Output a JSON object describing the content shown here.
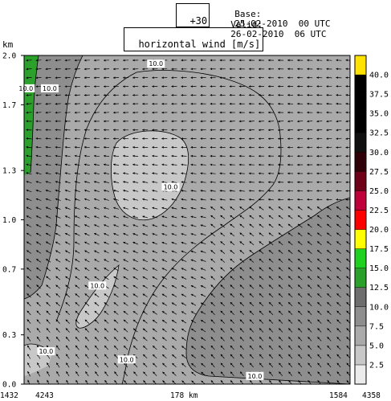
{
  "header": {
    "forecast_step": "+30",
    "base_label": "Base:",
    "base_value": "25-02-2010  00 UTC",
    "valid_label": "Valid:",
    "valid_value": "26-02-2010  06 UTC",
    "field_title": "horizontal wind [m/s]"
  },
  "chart_data": {
    "type": "heatmap",
    "title": "horizontal wind [m/s]",
    "ylabel": "km",
    "xlabel": "",
    "ylim": [
      0.0,
      2.0
    ],
    "y_ticks": [
      "0.0",
      "0.3",
      "0.7",
      "1.0",
      "1.3",
      "1.7",
      "2.0"
    ],
    "x_axis": {
      "left_point_label": "1432",
      "left_height": "4243",
      "center_label": "178 km",
      "right_point_label": "1584",
      "right_height": "4358"
    },
    "colorbar": {
      "levels": [
        "2.5",
        "5.0",
        "7.5",
        "10.0",
        "12.5",
        "15.0",
        "17.5",
        "20.0",
        "22.5",
        "25.0",
        "27.5",
        "30.0",
        "32.5",
        "35.0",
        "37.5",
        "40.0"
      ],
      "colors": [
        "#ebebeb",
        "#c8c8c8",
        "#aaaaaa",
        "#8e8e8e",
        "#6e6e6e",
        "#2ba02b",
        "#1fd21f",
        "#ffff00",
        "#ff0000",
        "#c0003a",
        "#6e0018",
        "#300008",
        "#101010",
        "#000000",
        "#000000",
        "#000000",
        "#ffe200"
      ]
    },
    "contour_labels": [
      {
        "text": "10.0",
        "x_km": 1,
        "y_km": 1.8
      },
      {
        "text": "10.0",
        "x_km": 14,
        "y_km": 1.8
      },
      {
        "text": "10.0",
        "x_km": 72,
        "y_km": 1.95
      },
      {
        "text": "10.0",
        "x_km": 80,
        "y_km": 1.2
      },
      {
        "text": "10.0",
        "x_km": 40,
        "y_km": 0.6
      },
      {
        "text": "10.0",
        "x_km": 12,
        "y_km": 0.2
      },
      {
        "text": "10.0",
        "x_km": 56,
        "y_km": 0.15
      },
      {
        "text": "10.0",
        "x_km": 126,
        "y_km": 0.05
      }
    ]
  }
}
